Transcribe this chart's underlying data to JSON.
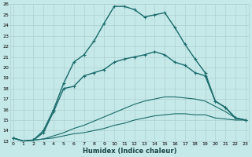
{
  "xlabel": "Humidex (Indice chaleur)",
  "xlim": [
    0,
    23
  ],
  "ylim": [
    13,
    26
  ],
  "yticks": [
    13,
    14,
    15,
    16,
    17,
    18,
    19,
    20,
    21,
    22,
    23,
    24,
    25,
    26
  ],
  "xticks": [
    0,
    1,
    2,
    3,
    4,
    5,
    6,
    7,
    8,
    9,
    10,
    11,
    12,
    13,
    14,
    15,
    16,
    17,
    18,
    19,
    20,
    21,
    22,
    23
  ],
  "bg_color": "#c5e8e8",
  "line_color": "#1a6b6b",
  "grid_color": "#b0d0d0",
  "lines": [
    {
      "x": [
        0,
        1,
        2,
        3,
        4,
        5,
        6,
        7,
        8,
        9,
        10,
        11,
        12,
        13,
        14,
        15,
        16,
        17,
        18,
        19,
        20,
        21,
        22,
        23
      ],
      "y": [
        13.3,
        13.0,
        13.1,
        13.2,
        13.3,
        13.5,
        13.7,
        13.8,
        14.0,
        14.2,
        14.5,
        14.7,
        15.0,
        15.2,
        15.4,
        15.5,
        15.6,
        15.6,
        15.5,
        15.5,
        15.2,
        15.1,
        15.0,
        15.0
      ],
      "marker": false,
      "lw": 0.8
    },
    {
      "x": [
        0,
        1,
        2,
        3,
        4,
        5,
        6,
        7,
        8,
        9,
        10,
        11,
        12,
        13,
        14,
        15,
        16,
        17,
        18,
        19,
        20,
        21,
        22,
        23
      ],
      "y": [
        13.3,
        13.0,
        13.1,
        13.2,
        13.5,
        13.8,
        14.2,
        14.5,
        14.9,
        15.3,
        15.7,
        16.1,
        16.5,
        16.8,
        17.0,
        17.2,
        17.2,
        17.1,
        17.0,
        16.8,
        16.3,
        15.8,
        15.2,
        15.0
      ],
      "marker": false,
      "lw": 0.8
    },
    {
      "x": [
        0,
        1,
        2,
        3,
        4,
        5,
        6,
        7,
        8,
        9,
        10,
        11,
        12,
        13,
        14,
        15,
        16,
        17,
        18,
        19,
        20,
        21,
        22,
        23
      ],
      "y": [
        13.3,
        13.0,
        13.1,
        13.8,
        15.8,
        18.0,
        18.2,
        19.2,
        19.5,
        19.8,
        20.5,
        20.8,
        21.0,
        21.2,
        21.5,
        21.2,
        20.5,
        20.2,
        19.5,
        19.2,
        16.8,
        16.2,
        15.2,
        15.0
      ],
      "marker": true,
      "lw": 1.0
    },
    {
      "x": [
        0,
        1,
        2,
        3,
        4,
        5,
        6,
        7,
        8,
        9,
        10,
        11,
        12,
        13,
        14,
        15,
        16,
        17,
        18,
        19,
        20,
        21,
        22,
        23
      ],
      "y": [
        13.3,
        13.0,
        13.1,
        14.0,
        16.0,
        18.5,
        20.5,
        21.2,
        22.5,
        24.2,
        25.8,
        25.8,
        25.5,
        24.8,
        25.0,
        25.2,
        23.8,
        22.2,
        20.8,
        19.5,
        16.8,
        16.2,
        15.2,
        15.0
      ],
      "marker": true,
      "lw": 1.0
    }
  ]
}
